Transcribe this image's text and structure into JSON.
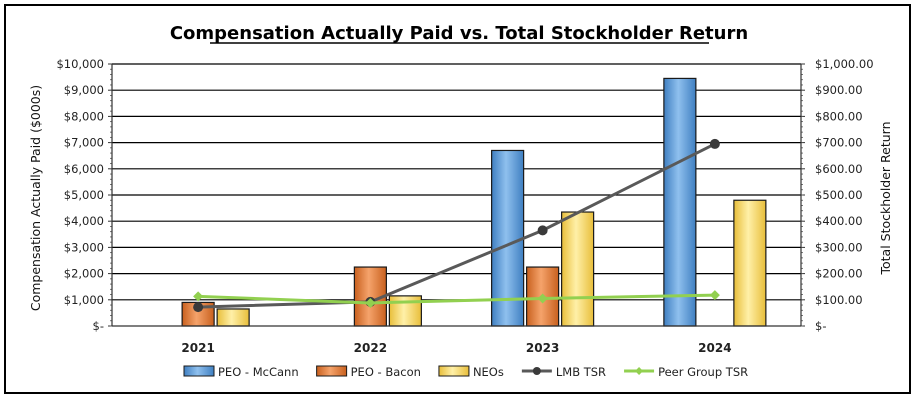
{
  "chart_data": {
    "type": "bar",
    "title": "Compensation Actually Paid vs. Total Stockholder Return",
    "ylabel": "Compensation Actually Paid ($000s)",
    "y2label": "Total Stockholder Return",
    "categories": [
      "2021",
      "2022",
      "2023",
      "2024"
    ],
    "ylim": [
      0,
      10000
    ],
    "y2lim": [
      0,
      1000
    ],
    "yticks": [
      "$-",
      "$1,000",
      "$2,000",
      "$3,000",
      "$4,000",
      "$5,000",
      "$6,000",
      "$7,000",
      "$8,000",
      "$9,000",
      "$10,000"
    ],
    "y2ticks": [
      "$-",
      "$100.00",
      "$200.00",
      "$300.00",
      "$400.00",
      "$500.00",
      "$600.00",
      "$700.00",
      "$800.00",
      "$900.00",
      "$1,000.00"
    ],
    "grid": true,
    "legend_position": "bottom",
    "series": [
      {
        "name": "PEO - McCann",
        "kind": "bar",
        "axis": "left",
        "color": "#5B9BD5",
        "values": [
          null,
          null,
          6700,
          9450
        ]
      },
      {
        "name": "PEO - Bacon",
        "kind": "bar",
        "axis": "left",
        "color": "#ED7D31",
        "values": [
          900,
          2250,
          2250,
          null
        ]
      },
      {
        "name": "NEOs",
        "kind": "bar",
        "axis": "left",
        "color": "#FFD966",
        "values": [
          650,
          1150,
          4350,
          4800
        ]
      },
      {
        "name": "LMB TSR",
        "kind": "line",
        "axis": "right",
        "color": "#595959",
        "values": [
          72,
          92,
          365,
          695
        ]
      },
      {
        "name": "Peer Group TSR",
        "kind": "line",
        "axis": "right",
        "color": "#92D050",
        "values": [
          113,
          88,
          105,
          118
        ]
      }
    ]
  }
}
